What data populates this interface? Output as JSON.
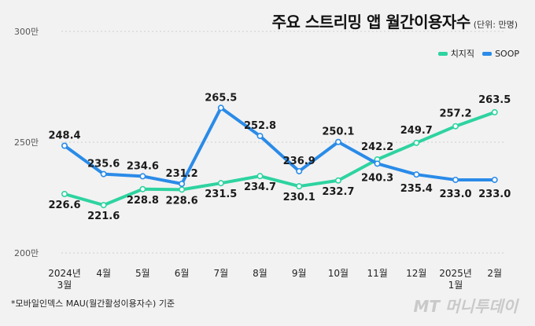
{
  "header": {
    "title": "주요 스트리밍 앱 월간이용자수",
    "unit": "(단위: 만명)"
  },
  "footnote": "*모바일인덱스 MAU(월간활성이용자수) 기준",
  "watermark": "MT 머니투데이",
  "chart_data": {
    "type": "line",
    "title": "주요 스트리밍 앱 월간이용자수",
    "ylabel": "단위: 만명",
    "ylim": [
      200,
      300
    ],
    "yticks": [
      {
        "value": 300,
        "label": "300만"
      },
      {
        "value": 250,
        "label": "250만"
      },
      {
        "value": 200,
        "label": "200만"
      }
    ],
    "categories": [
      [
        "2024년",
        "3월"
      ],
      [
        "4월"
      ],
      [
        "5월"
      ],
      [
        "6월"
      ],
      [
        "7월"
      ],
      [
        "8월"
      ],
      [
        "9월"
      ],
      [
        "10월"
      ],
      [
        "11월"
      ],
      [
        "12월"
      ],
      [
        "2025년",
        "1월"
      ],
      [
        "2월"
      ]
    ],
    "legend_position": "top-right",
    "series": [
      {
        "name": "치지직",
        "color": "#2ed3a0",
        "values": [
          226.6,
          221.6,
          228.8,
          228.6,
          231.5,
          234.7,
          230.1,
          232.7,
          242.2,
          249.7,
          257.2,
          263.5
        ],
        "labels": [
          "226.6",
          "221.6",
          "228.8",
          "228.6",
          "231.5",
          "234.7",
          "230.1",
          "232.7",
          "242.2",
          "249.7",
          "257.2",
          "263.5"
        ]
      },
      {
        "name": "SOOP",
        "color": "#2a8be8",
        "values": [
          248.4,
          235.6,
          234.6,
          231.2,
          265.5,
          252.8,
          236.9,
          250.1,
          240.3,
          235.4,
          233.0,
          233.0
        ],
        "labels": [
          "248.4",
          "235.6",
          "234.6",
          "231.2",
          "265.5",
          "252.8",
          "236.9",
          "250.1",
          "240.3",
          "235.4",
          "233.0",
          "233.0"
        ]
      }
    ]
  }
}
